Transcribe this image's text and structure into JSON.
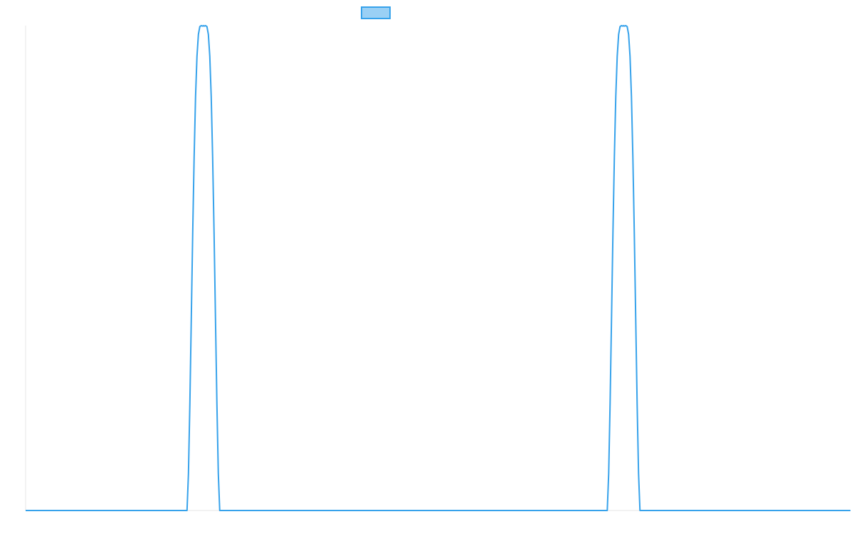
{
  "chart_data": {
    "type": "line",
    "title": "",
    "xlabel": "",
    "ylabel": "",
    "xlim": [
      0,
      1160
    ],
    "ylim": [
      0,
      1
    ],
    "grid": false,
    "legend": {
      "position": "top-center",
      "entries": [
        {
          "name": ""
        }
      ]
    },
    "series": [
      {
        "name": "",
        "color": "#36a2eb",
        "fill": "#9ad0f5",
        "x": [
          0,
          227,
          229,
          231,
          233,
          235,
          237,
          239,
          241,
          243,
          245,
          247,
          249,
          250,
          251,
          253,
          255,
          257,
          259,
          261,
          263,
          265,
          267,
          269,
          271,
          273,
          818,
          820,
          822,
          824,
          826,
          828,
          830,
          832,
          834,
          836,
          838,
          840,
          841,
          842,
          844,
          846,
          848,
          850,
          852,
          854,
          856,
          858,
          860,
          862,
          864,
          1160
        ],
        "y": [
          0,
          0,
          0.076,
          0.221,
          0.397,
          0.574,
          0.73,
          0.854,
          0.937,
          0.982,
          0.998,
          1.0,
          0.999,
          1.0,
          0.999,
          1.0,
          0.998,
          0.982,
          0.937,
          0.854,
          0.73,
          0.574,
          0.397,
          0.221,
          0.076,
          0,
          0,
          0.076,
          0.221,
          0.397,
          0.574,
          0.73,
          0.854,
          0.937,
          0.982,
          0.998,
          1.0,
          0.999,
          1.0,
          0.999,
          1.0,
          0.998,
          0.982,
          0.937,
          0.854,
          0.73,
          0.574,
          0.397,
          0.221,
          0.076,
          0,
          0
        ]
      }
    ]
  }
}
